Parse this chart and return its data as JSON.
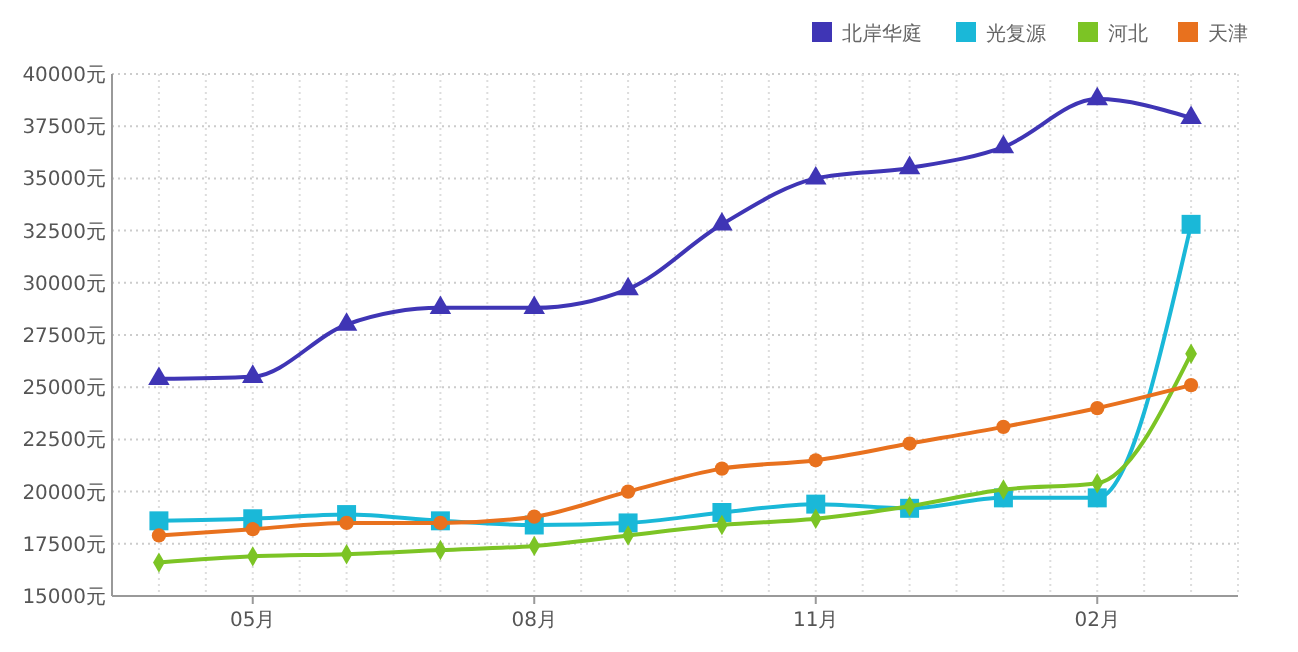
{
  "chart_data": {
    "type": "line",
    "categories": [
      null,
      "05月",
      null,
      null,
      "08月",
      null,
      null,
      "11月",
      null,
      null,
      "02月",
      null
    ],
    "series": [
      {
        "name": "北岸华庭",
        "color": "#3f35b5",
        "marker": "triangle",
        "values": [
          25400,
          25500,
          28000,
          28800,
          28800,
          29700,
          32800,
          35000,
          35500,
          36500,
          38800,
          37900
        ]
      },
      {
        "name": "光复源",
        "color": "#1ab8d8",
        "marker": "square",
        "values": [
          18600,
          18700,
          18900,
          18600,
          18400,
          18500,
          19000,
          19400,
          19200,
          19700,
          19700,
          32800
        ]
      },
      {
        "name": "河北",
        "color": "#7cc425",
        "marker": "diamond",
        "values": [
          16600,
          16900,
          17000,
          17200,
          17400,
          17900,
          18400,
          18700,
          19300,
          20100,
          20400,
          26600
        ]
      },
      {
        "name": "天津",
        "color": "#e8711e",
        "marker": "circle",
        "values": [
          17900,
          18200,
          18500,
          18500,
          18800,
          20000,
          21100,
          21500,
          22300,
          23100,
          24000,
          25100
        ]
      }
    ],
    "ylim": [
      15000,
      40000
    ],
    "yticks": [
      {
        "value": 15000,
        "label": "15000元"
      },
      {
        "value": 17500,
        "label": "17500元"
      },
      {
        "value": 20000,
        "label": "20000元"
      },
      {
        "value": 22500,
        "label": "22500元"
      },
      {
        "value": 25000,
        "label": "25000元"
      },
      {
        "value": 27500,
        "label": "27500元"
      },
      {
        "value": 30000,
        "label": "30000元"
      },
      {
        "value": 32500,
        "label": "32500元"
      },
      {
        "value": 35000,
        "label": "35000元"
      },
      {
        "value": 37500,
        "label": "37500元"
      },
      {
        "value": 40000,
        "label": "40000元"
      }
    ],
    "grid": true,
    "legend": "top right"
  }
}
